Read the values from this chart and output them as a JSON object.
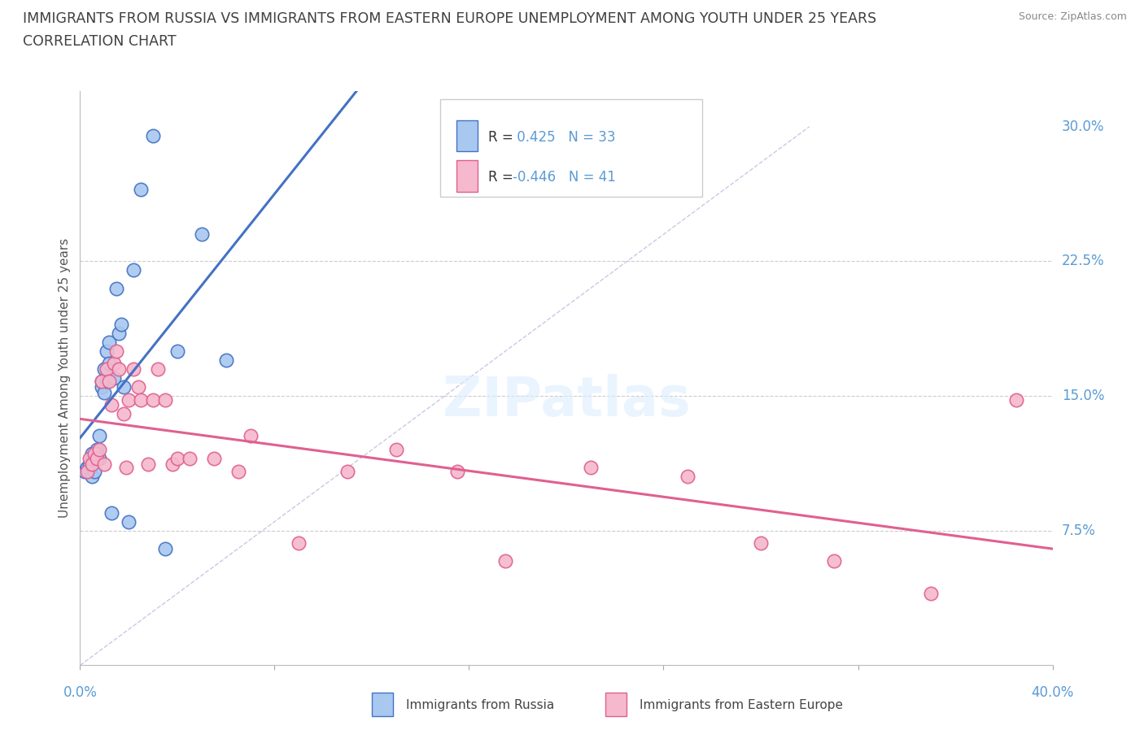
{
  "title_line1": "IMMIGRANTS FROM RUSSIA VS IMMIGRANTS FROM EASTERN EUROPE UNEMPLOYMENT AMONG YOUTH UNDER 25 YEARS",
  "title_line2": "CORRELATION CHART",
  "source": "Source: ZipAtlas.com",
  "ylabel_label": "Unemployment Among Youth under 25 years",
  "legend_label1": "Immigrants from Russia",
  "legend_label2": "Immigrants from Eastern Europe",
  "R1": 0.425,
  "N1": 33,
  "R2": -0.446,
  "N2": 41,
  "color_russia": "#A8C8F0",
  "color_eastern": "#F5B8CC",
  "color_russia_line": "#4472C4",
  "color_eastern_line": "#E06090",
  "color_axis_labels": "#5B9BD5",
  "color_title": "#404040",
  "background_color": "#FFFFFF",
  "xlim": [
    0.0,
    0.4
  ],
  "ylim": [
    0.0,
    0.32
  ],
  "russia_x": [
    0.002,
    0.003,
    0.004,
    0.005,
    0.005,
    0.006,
    0.006,
    0.007,
    0.007,
    0.008,
    0.008,
    0.009,
    0.009,
    0.01,
    0.01,
    0.011,
    0.011,
    0.012,
    0.012,
    0.013,
    0.014,
    0.015,
    0.016,
    0.017,
    0.018,
    0.02,
    0.022,
    0.025,
    0.03,
    0.035,
    0.04,
    0.05,
    0.06
  ],
  "russia_y": [
    0.108,
    0.11,
    0.112,
    0.118,
    0.105,
    0.115,
    0.108,
    0.12,
    0.118,
    0.115,
    0.128,
    0.155,
    0.158,
    0.152,
    0.165,
    0.158,
    0.175,
    0.168,
    0.18,
    0.085,
    0.16,
    0.21,
    0.185,
    0.19,
    0.155,
    0.08,
    0.22,
    0.265,
    0.295,
    0.065,
    0.175,
    0.24,
    0.17
  ],
  "eastern_x": [
    0.003,
    0.004,
    0.005,
    0.006,
    0.007,
    0.008,
    0.009,
    0.01,
    0.011,
    0.012,
    0.013,
    0.014,
    0.015,
    0.016,
    0.018,
    0.019,
    0.02,
    0.022,
    0.024,
    0.025,
    0.028,
    0.03,
    0.032,
    0.035,
    0.038,
    0.04,
    0.045,
    0.055,
    0.065,
    0.07,
    0.09,
    0.11,
    0.13,
    0.155,
    0.175,
    0.21,
    0.25,
    0.28,
    0.31,
    0.35,
    0.385
  ],
  "eastern_y": [
    0.108,
    0.115,
    0.112,
    0.118,
    0.115,
    0.12,
    0.158,
    0.112,
    0.165,
    0.158,
    0.145,
    0.168,
    0.175,
    0.165,
    0.14,
    0.11,
    0.148,
    0.165,
    0.155,
    0.148,
    0.112,
    0.148,
    0.165,
    0.148,
    0.112,
    0.115,
    0.115,
    0.115,
    0.108,
    0.128,
    0.068,
    0.108,
    0.12,
    0.108,
    0.058,
    0.11,
    0.105,
    0.068,
    0.058,
    0.04,
    0.148
  ]
}
